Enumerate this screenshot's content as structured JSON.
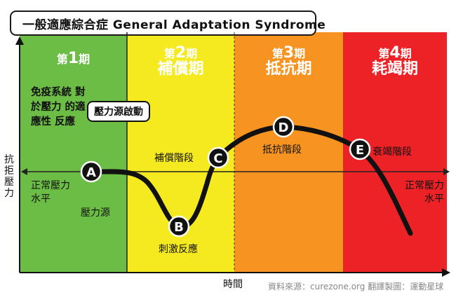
{
  "title": "一般適應綜合症 General Adaptation Syndrome",
  "phases": [
    {
      "prefix": "第",
      "num": "1",
      "suffix": "期",
      "name": "",
      "color": "#6cbd45"
    },
    {
      "prefix": "第",
      "num": "2",
      "suffix": "期",
      "name": "補償期",
      "color": "#f5ea1f"
    },
    {
      "prefix": "第",
      "num": "3",
      "suffix": "期",
      "name": "抵抗期",
      "color": "#f79421"
    },
    {
      "prefix": "第",
      "num": "4",
      "suffix": "期",
      "name": "耗竭期",
      "color": "#ec2227"
    }
  ],
  "phase1_description": "免疫系統 對於壓力 的適應性 反應",
  "trigger_label": "壓力源啟動",
  "y_axis_label": "抗拒壓力",
  "x_axis_label": "時間",
  "baseline_label_left": "正常壓力 水平",
  "baseline_label_right": "正常壓力 水平",
  "points": {
    "A": {
      "letter": "A",
      "label": "壓力源"
    },
    "B": {
      "letter": "B",
      "label": "刺激反應"
    },
    "C": {
      "letter": "C",
      "label": "補償階段"
    },
    "D": {
      "letter": "D",
      "label": "抵抗階段"
    },
    "E": {
      "letter": "E",
      "label": "衰竭階段"
    }
  },
  "credit": "資料來源：curezone.org 翻譯製圖：運動星球"
}
